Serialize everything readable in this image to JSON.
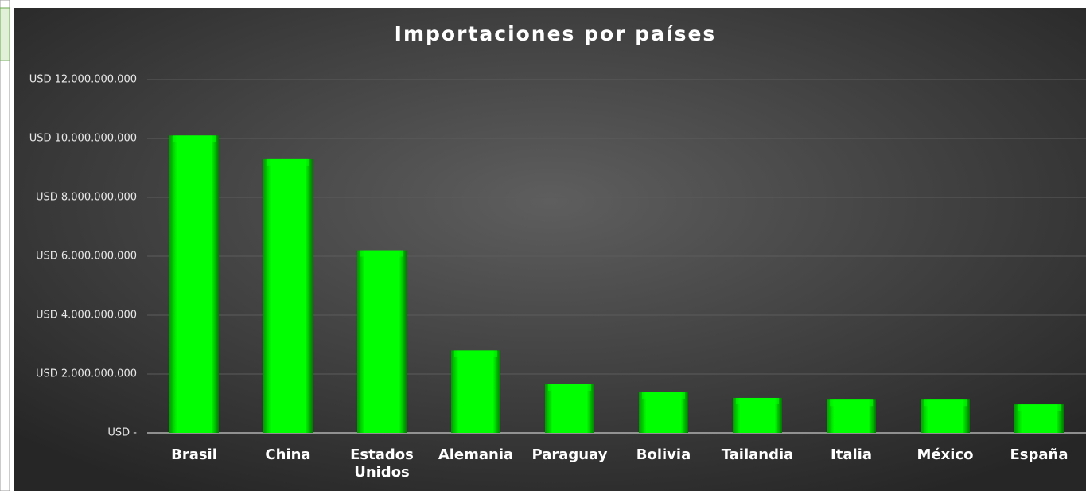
{
  "chart_data": {
    "type": "bar",
    "title": "Importaciones por países",
    "categories": [
      "Brasil",
      "China",
      "Estados Unidos",
      "Alemania",
      "Paraguay",
      "Bolivia",
      "Tailandia",
      "Italia",
      "México",
      "España"
    ],
    "values": [
      10100000000,
      9300000000,
      6200000000,
      2800000000,
      1650000000,
      1380000000,
      1190000000,
      1130000000,
      1130000000,
      970000000
    ],
    "color": "#00ff00",
    "ylim": [
      0,
      12000000000
    ],
    "yticks": [
      {
        "value": 0,
        "label": "USD -"
      },
      {
        "value": 2000000000,
        "label": "USD 2.000.000.000"
      },
      {
        "value": 4000000000,
        "label": "USD 4.000.000.000"
      },
      {
        "value": 6000000000,
        "label": "USD 6.000.000.000"
      },
      {
        "value": 8000000000,
        "label": "USD 8.000.000.000"
      },
      {
        "value": 10000000000,
        "label": "USD 10.000.000.000"
      },
      {
        "value": 12000000000,
        "label": "USD 12.000.000.000"
      }
    ],
    "grid": true
  }
}
